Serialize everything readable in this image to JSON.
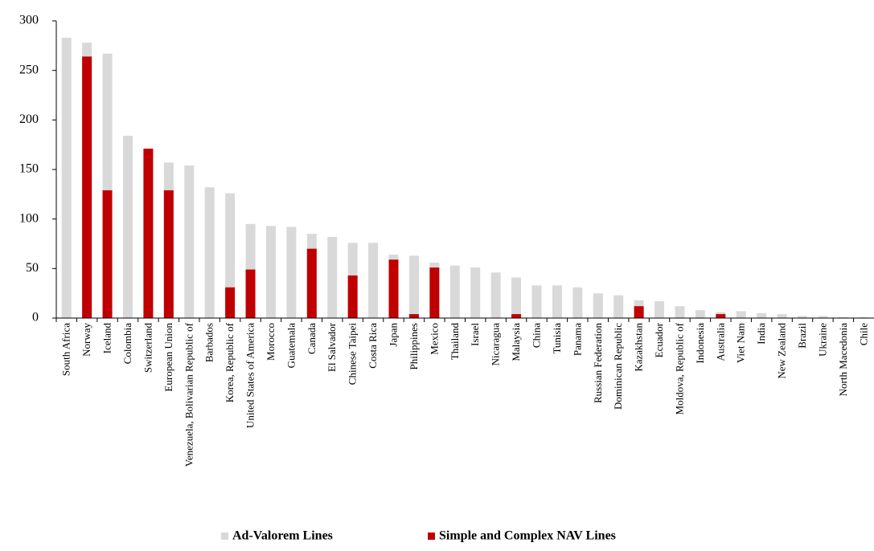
{
  "chart_data": {
    "type": "bar",
    "overlap": true,
    "categories": [
      "South Africa",
      "Norway",
      "Iceland",
      "Colombia",
      "Switzerland",
      "European Union",
      "Venezuela, Bolivarian Republic of",
      "Barbados",
      "Korea, Republic of",
      "United States of America",
      "Morocco",
      "Guatemala",
      "Canada",
      "El Salvador",
      "Chinese Taipei",
      "Costa Rica",
      "Japan",
      "Philippines",
      "Mexico",
      "Thailand",
      "Israel",
      "Nicaragua",
      "Malaysia",
      "China",
      "Tunisia",
      "Panama",
      "Russian Federation",
      "Dominican Republic",
      "Kazakhstan",
      "Ecuador",
      "Moldova, Republic of",
      "Indonesia",
      "Australia",
      "Viet Nam",
      "India",
      "New Zealand",
      "Brazil",
      "Ukraine",
      "North Macedonia",
      "Chile"
    ],
    "series": [
      {
        "name": "Ad-Valorem Lines",
        "color": "#d9d9d9",
        "values": [
          283,
          278,
          267,
          184,
          171,
          157,
          154,
          132,
          126,
          95,
          93,
          92,
          85,
          82,
          76,
          76,
          64,
          63,
          56,
          53,
          51,
          46,
          41,
          33,
          33,
          31,
          25,
          23,
          18,
          17,
          12,
          8,
          6,
          7,
          5,
          4,
          2,
          2,
          1,
          1
        ]
      },
      {
        "name": "Simple and Complex NAV Lines",
        "color": "#c00000",
        "values": [
          0,
          264,
          129,
          0,
          171,
          129,
          0,
          0,
          31,
          49,
          0,
          0,
          70,
          0,
          43,
          0,
          59,
          4,
          51,
          0,
          0,
          0,
          4,
          0,
          0,
          0,
          0,
          0,
          12,
          0,
          0,
          0,
          4,
          0,
          0,
          0,
          0,
          0,
          0,
          0
        ]
      }
    ],
    "ylim": [
      0,
      300
    ],
    "yticks": [
      0,
      50,
      100,
      150,
      200,
      250,
      300
    ],
    "grid": false,
    "legend": "bottom"
  }
}
